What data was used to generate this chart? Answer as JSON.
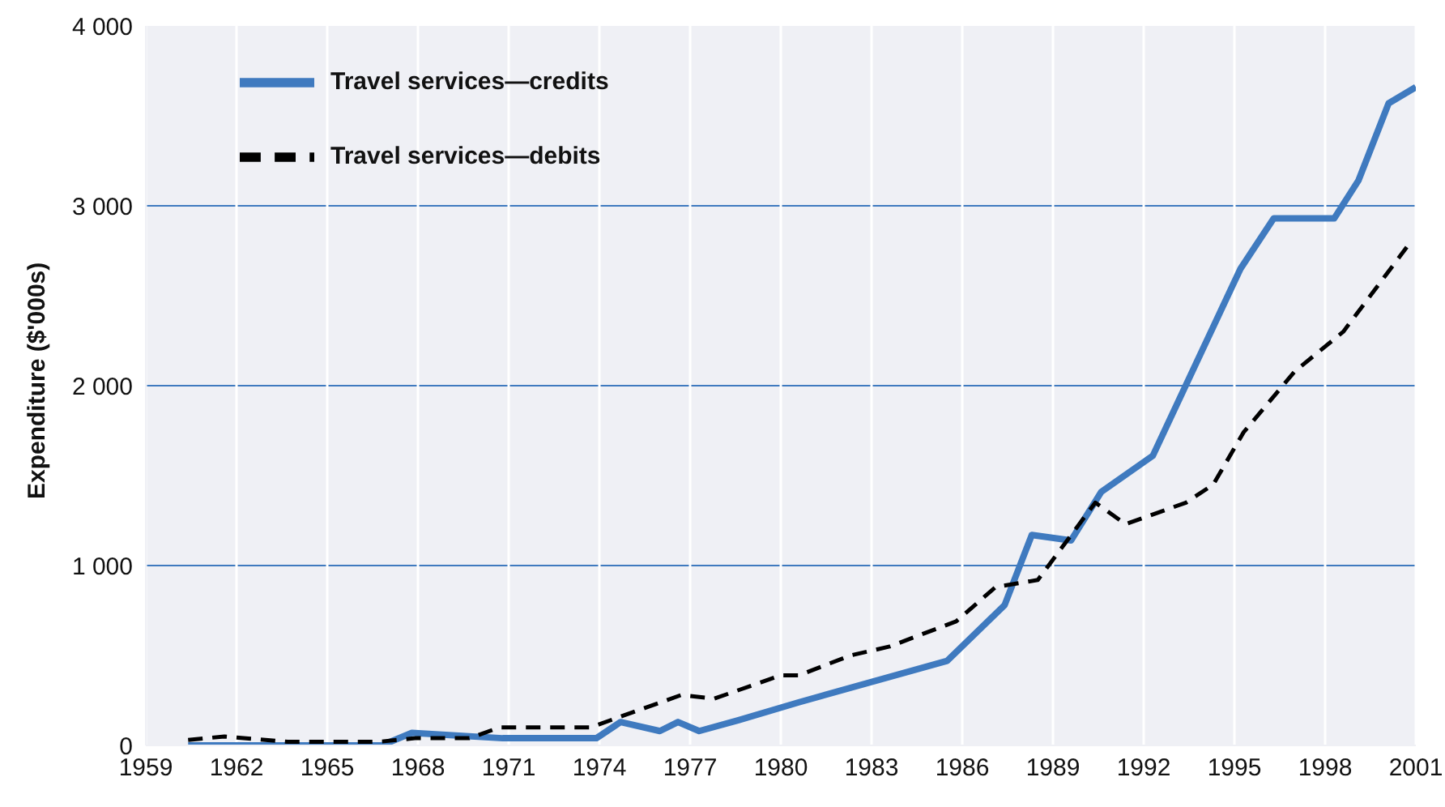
{
  "chart_data": {
    "type": "line",
    "ylabel": "Expenditure ($'000s)",
    "xlim": [
      1959,
      2001
    ],
    "xticks": [
      1959,
      1962,
      1965,
      1968,
      1971,
      1974,
      1977,
      1980,
      1983,
      1986,
      1989,
      1992,
      1995,
      1998,
      2001
    ],
    "ylim": [
      0,
      4000
    ],
    "yticks": [
      0,
      {
        "value": 1000,
        "label": "1 000"
      },
      {
        "value": 2000,
        "label": "2 000"
      },
      {
        "value": 3000,
        "label": "3 000"
      },
      {
        "value": 4000,
        "label": "4 000"
      }
    ],
    "grid": true,
    "legend": "top left",
    "marker": "none",
    "series": [
      {
        "name": "Travel services—credits",
        "color": "#3f7abf",
        "line_style": "solid",
        "x": [
          1960.4,
          1966.8,
          1967.8,
          1970.8,
          1973.9,
          1974.7,
          1976,
          1976.6,
          1977.3,
          1978.6,
          1980.6,
          1985.5,
          1987.4,
          1988.3,
          1989.6,
          1990.6,
          1992.3,
          1995.2,
          1996.3,
          1998.3,
          1999.1,
          2000.1,
          2001
        ],
        "values": [
          0,
          0,
          70,
          40,
          40,
          130,
          80,
          130,
          80,
          140,
          240,
          470,
          780,
          1170,
          1140,
          1410,
          1610,
          2650,
          2930,
          2930,
          3140,
          3570,
          3660
        ]
      },
      {
        "name": "Travel services—debits",
        "color": "#000000",
        "line_style": "dashed",
        "x": [
          1960.4,
          1961.6,
          1963.7,
          1966.7,
          1967.9,
          1969.7,
          1970.7,
          1973.7,
          1976.7,
          1977.8,
          1980,
          1980.6,
          1982.3,
          1983.6,
          1985.8,
          1987.1,
          1988.5,
          1990.4,
          1991.4,
          1993.4,
          1994.3,
          1995.3,
          1997,
          1998.6,
          2000.7
        ],
        "values": [
          30,
          50,
          20,
          20,
          40,
          40,
          100,
          100,
          280,
          260,
          390,
          390,
          500,
          550,
          690,
          880,
          920,
          1350,
          1230,
          1350,
          1450,
          1740,
          2080,
          2300,
          2770
        ]
      }
    ]
  }
}
